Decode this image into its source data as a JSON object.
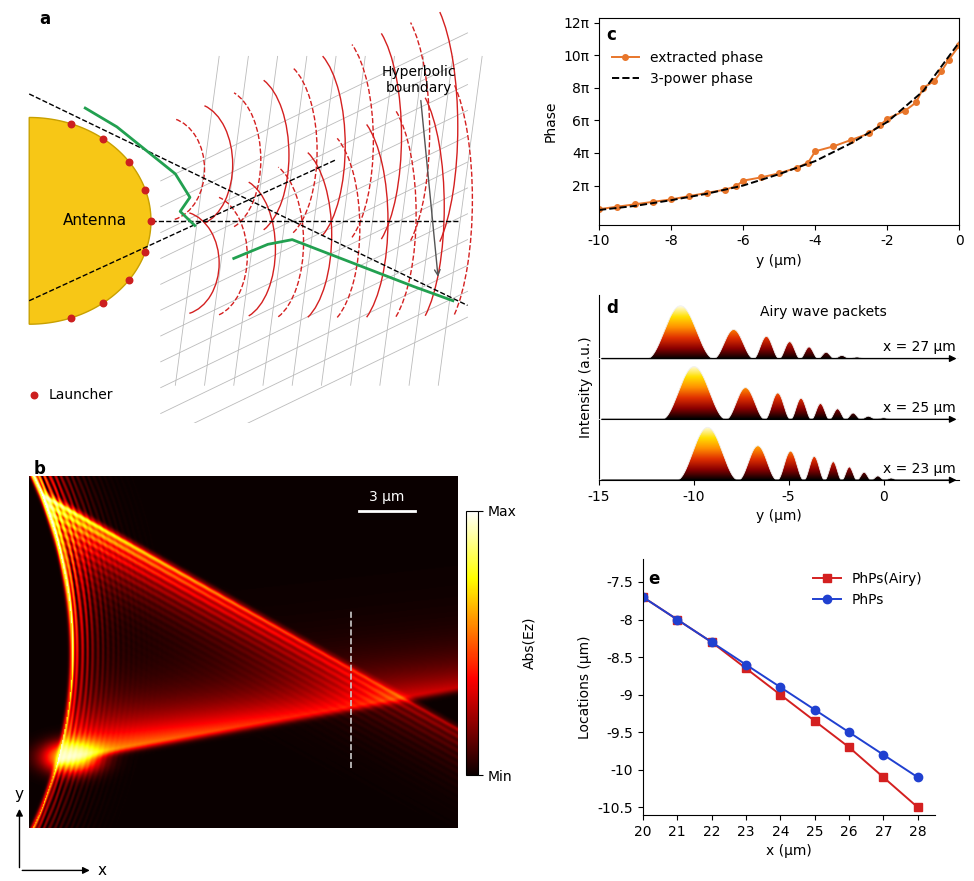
{
  "diagram": {
    "panel": "a",
    "antenna": "Antenna",
    "launcher": "Launcher",
    "boundary": "Hyperbolic\nboundary"
  },
  "field_map": {
    "panel": "b",
    "type": "heatmap",
    "scale_bar": "3 μm",
    "x_label": "x",
    "y_label": "y",
    "tick_labels": false,
    "colorbar": {
      "label": "Abs(Ez)",
      "range": [
        0,
        1
      ],
      "ticks": [
        {
          "value": 0,
          "label": "Min"
        },
        {
          "value": 1,
          "label": "Max"
        }
      ]
    }
  },
  "chart_data": [
    {
      "panel": "c",
      "type": "line",
      "x_label": "y (μm)",
      "y_label": "Phase",
      "xlim": [
        -10,
        0
      ],
      "xticks": [
        -10,
        -8,
        -6,
        -4,
        -2,
        0
      ],
      "ylim": [
        -0.4,
        12.3
      ],
      "yticks": [
        {
          "value": 2,
          "label": "2π"
        },
        {
          "value": 4,
          "label": "4π"
        },
        {
          "value": 6,
          "label": "6π"
        },
        {
          "value": 8,
          "label": "8π"
        },
        {
          "value": 10,
          "label": "10π"
        },
        {
          "value": 12,
          "label": "12π"
        }
      ],
      "legend": "upper left",
      "series": [
        {
          "name": "extracted phase",
          "color": "#e8762b",
          "marker": "o",
          "line_style": "solid",
          "x": [
            -10,
            -9.5,
            -9,
            -8.5,
            -8,
            -7.5,
            -7,
            -6.5,
            -6.2,
            -6,
            -5.5,
            -5,
            -4.5,
            -4.2,
            -4,
            -3.5,
            -3,
            -2.5,
            -2.2,
            -2,
            -1.5,
            -1.2,
            -1,
            -0.7,
            -0.5,
            -0.3,
            0
          ],
          "values": [
            0.55,
            0.7,
            0.85,
            1.0,
            1.15,
            1.35,
            1.55,
            1.75,
            1.95,
            2.3,
            2.5,
            2.75,
            3.1,
            3.4,
            4.1,
            4.4,
            4.8,
            5.2,
            5.7,
            6.1,
            6.6,
            7.1,
            8.0,
            8.4,
            9.0,
            9.7,
            10.6
          ]
        },
        {
          "name": "3-power phase",
          "color": "#000000",
          "line_style": "dashed",
          "x": [
            -10,
            -9,
            -8,
            -7,
            -6,
            -5,
            -4,
            -3,
            -2,
            -1,
            0
          ],
          "values": [
            0.5,
            0.75,
            1.1,
            1.5,
            2.0,
            2.7,
            3.5,
            4.6,
            5.9,
            7.8,
            10.8
          ]
        }
      ]
    },
    {
      "panel": "d",
      "type": "area",
      "annotation": "Airy wave packets",
      "x_label": "y (μm)",
      "y_label": "Intensity (a.u.)",
      "xlim": [
        -15,
        4
      ],
      "xticks": [
        -15,
        -10,
        -5,
        0
      ],
      "tick_labels": "x",
      "series": [
        {
          "name": "x = 27 μm",
          "peak_y": [
            -10.3,
            -7.6,
            -6.1,
            -4.9,
            -3.9,
            -3.0,
            -2.2,
            -1.4
          ],
          "values": [
            1.0,
            0.55,
            0.42,
            0.32,
            0.22,
            0.12,
            0.06,
            0.03
          ]
        },
        {
          "name": "x = 25 μm",
          "peak_y": [
            -9.6,
            -7.0,
            -5.5,
            -4.3,
            -3.3,
            -2.4,
            -1.6,
            -0.8,
            0.0
          ],
          "values": [
            1.0,
            0.6,
            0.5,
            0.4,
            0.3,
            0.2,
            0.12,
            0.06,
            0.03
          ]
        },
        {
          "name": "x = 23 μm",
          "peak_y": [
            -8.9,
            -6.4,
            -4.8,
            -3.6,
            -2.6,
            -1.8,
            -1.0,
            -0.3,
            0.4
          ],
          "values": [
            1.0,
            0.65,
            0.55,
            0.45,
            0.35,
            0.25,
            0.15,
            0.08,
            0.04
          ]
        }
      ]
    },
    {
      "panel": "e",
      "type": "line",
      "x_label": "x (μm)",
      "y_label": "Locations (μm)",
      "x": [
        20,
        21,
        22,
        23,
        24,
        25,
        26,
        27,
        28
      ],
      "xlim": [
        20,
        28.5
      ],
      "xticks": [
        20,
        21,
        22,
        23,
        24,
        25,
        26,
        27,
        28
      ],
      "ylim": [
        -10.6,
        -7.2
      ],
      "yticks": [
        -10.5,
        -10,
        -9.5,
        -9,
        -8.5,
        -8,
        -7.5
      ],
      "legend": "upper right",
      "series": [
        {
          "name": "PhPs(Airy)",
          "color": "#d42020",
          "marker": "s",
          "line_style": "solid",
          "values": [
            -7.7,
            -8.0,
            -8.3,
            -8.65,
            -9.0,
            -9.35,
            -9.7,
            -10.1,
            -10.5
          ]
        },
        {
          "name": "PhPs",
          "color": "#2040d0",
          "marker": "o",
          "line_style": "solid",
          "values": [
            -7.7,
            -8.0,
            -8.3,
            -8.6,
            -8.9,
            -9.2,
            -9.5,
            -9.8,
            -10.1
          ]
        }
      ]
    }
  ]
}
